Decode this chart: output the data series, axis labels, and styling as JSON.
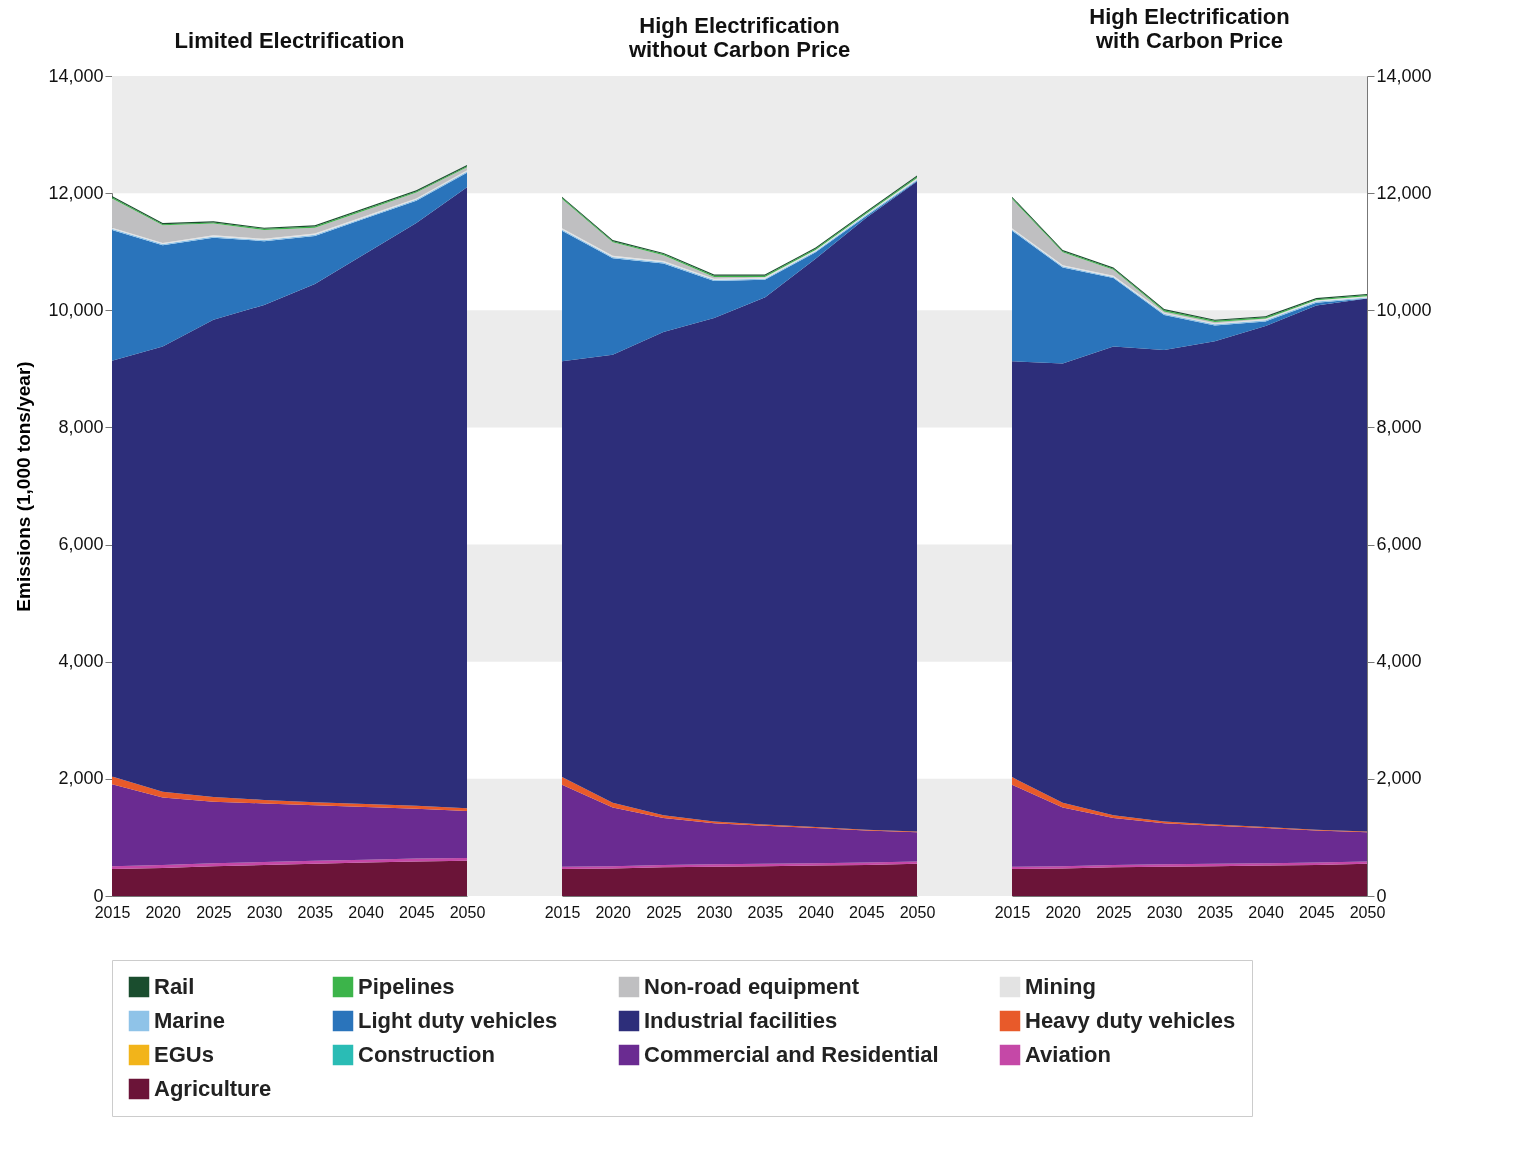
{
  "chart_data": [
    {
      "type": "area",
      "title": "Limited Electrification",
      "ylabel": "Emissions (1,000 tons/year)",
      "stacked": true,
      "legend": "bottom",
      "x": [
        2015,
        2020,
        2025,
        2030,
        2035,
        2040,
        2045,
        2050
      ],
      "xlim": [
        2015,
        2050
      ],
      "xticks": [
        2015,
        2020,
        2025,
        2030,
        2035,
        2040,
        2045,
        2050
      ],
      "ylim": [
        0,
        14000
      ],
      "yticks": [
        0,
        {
          "value": 2000,
          "label": "2,000"
        },
        {
          "value": 4000,
          "label": "4,000"
        },
        {
          "value": 6000,
          "label": "6,000"
        },
        {
          "value": 8000,
          "label": "8,000"
        },
        {
          "value": 10000,
          "label": "10,000"
        },
        {
          "value": 12000,
          "label": "12,000"
        },
        {
          "value": 14000,
          "label": "14,000"
        }
      ],
      "bands": [
        {
          "axis": "y",
          "from": 0,
          "to": 2000,
          "color": "#ececec"
        },
        {
          "axis": "y",
          "from": 4000,
          "to": 6000,
          "color": "#ececec"
        },
        {
          "axis": "y",
          "from": 8000,
          "to": 10000,
          "color": "#ececec"
        },
        {
          "axis": "y",
          "from": 12000,
          "to": 14000,
          "color": "#ececec"
        }
      ],
      "series": [
        {
          "name": "Agriculture",
          "color": "#6b1438",
          "values": [
            460,
            480,
            510,
            530,
            550,
            570,
            590,
            600
          ]
        },
        {
          "name": "Aviation",
          "color": "#c548a7",
          "values": [
            50,
            50,
            50,
            50,
            50,
            50,
            50,
            50
          ]
        },
        {
          "name": "Commercial and Residential",
          "color": "#6a2b91",
          "values": [
            1400,
            1150,
            1050,
            1000,
            950,
            900,
            850,
            800
          ]
        },
        {
          "name": "Construction",
          "color": "#2abcb5",
          "values": [
            null,
            null,
            null,
            null,
            null,
            null,
            null,
            null
          ]
        },
        {
          "name": "EGUs",
          "color": "#f2b41a",
          "values": [
            null,
            null,
            null,
            null,
            null,
            null,
            null,
            null
          ]
        },
        {
          "name": "Heavy duty vehicles",
          "color": "#e85a2a",
          "values": [
            130,
            100,
            80,
            60,
            50,
            50,
            50,
            50
          ]
        },
        {
          "name": "Industrial facilities",
          "color": "#2d2e7a",
          "values": [
            7100,
            7600,
            8150,
            8450,
            8850,
            9400,
            9950,
            10600
          ]
        },
        {
          "name": "Light duty vehicles",
          "color": "#2a74bb",
          "values": [
            2230,
            1730,
            1400,
            1090,
            820,
            600,
            380,
            250
          ]
        },
        {
          "name": "Marine",
          "color": "#8fc3e8",
          "values": [
            20,
            20,
            20,
            20,
            20,
            20,
            20,
            20
          ]
        },
        {
          "name": "Mining",
          "color": "#e3e3e3",
          "values": [
            20,
            20,
            20,
            20,
            20,
            20,
            20,
            20
          ]
        },
        {
          "name": "Non-road equipment",
          "color": "#bfbfc1",
          "values": [
            500,
            300,
            200,
            150,
            100,
            100,
            100,
            50
          ]
        },
        {
          "name": "Pipelines",
          "color": "#3cb44a",
          "values": [
            20,
            20,
            20,
            20,
            20,
            20,
            20,
            20
          ]
        },
        {
          "name": "Rail",
          "color": "#1a4d2e",
          "values": [
            20,
            20,
            20,
            20,
            20,
            20,
            20,
            20
          ]
        }
      ]
    },
    {
      "type": "area",
      "title": "High Electrification\nwithout Carbon Price",
      "stacked": true,
      "tick_labels": "x",
      "x": [
        2015,
        2020,
        2025,
        2030,
        2035,
        2040,
        2045,
        2050
      ],
      "xlim": [
        2015,
        2050
      ],
      "xticks": [
        2015,
        2020,
        2025,
        2030,
        2035,
        2040,
        2045,
        2050
      ],
      "ylim": [
        0,
        14000
      ],
      "bands": [
        {
          "axis": "y",
          "from": 0,
          "to": 2000,
          "color": "#ececec"
        },
        {
          "axis": "y",
          "from": 4000,
          "to": 6000,
          "color": "#ececec"
        },
        {
          "axis": "y",
          "from": 8000,
          "to": 10000,
          "color": "#ececec"
        },
        {
          "axis": "y",
          "from": 12000,
          "to": 14000,
          "color": "#ececec"
        }
      ],
      "series": [
        {
          "name": "Agriculture",
          "color": "#6b1438",
          "values": [
            460,
            470,
            490,
            500,
            510,
            520,
            530,
            550
          ]
        },
        {
          "name": "Aviation",
          "color": "#c548a7",
          "values": [
            40,
            40,
            40,
            40,
            40,
            40,
            40,
            40
          ]
        },
        {
          "name": "Commercial and Residential",
          "color": "#6a2b91",
          "values": [
            1400,
            1000,
            800,
            700,
            650,
            600,
            550,
            500
          ]
        },
        {
          "name": "Heavy duty vehicles",
          "color": "#e85a2a",
          "values": [
            130,
            80,
            50,
            30,
            20,
            20,
            10,
            10
          ]
        },
        {
          "name": "Industrial facilities",
          "color": "#2d2e7a",
          "values": [
            7100,
            7650,
            8250,
            8600,
            9000,
            9700,
            10450,
            11100
          ]
        },
        {
          "name": "Light duty vehicles",
          "color": "#2a74bb",
          "values": [
            2230,
            1650,
            1170,
            630,
            300,
            110,
            30,
            10
          ]
        },
        {
          "name": "Marine",
          "color": "#8fc3e8",
          "values": [
            20,
            20,
            20,
            20,
            20,
            20,
            20,
            20
          ]
        },
        {
          "name": "Mining",
          "color": "#e3e3e3",
          "values": [
            20,
            20,
            20,
            20,
            20,
            20,
            20,
            20
          ]
        },
        {
          "name": "Non-road equipment",
          "color": "#bfbfc1",
          "values": [
            500,
            230,
            100,
            30,
            10,
            0,
            0,
            10
          ]
        },
        {
          "name": "Pipelines",
          "color": "#3cb44a",
          "values": [
            20,
            20,
            20,
            20,
            20,
            20,
            20,
            20
          ]
        },
        {
          "name": "Rail",
          "color": "#1a4d2e",
          "values": [
            20,
            20,
            20,
            20,
            20,
            20,
            20,
            20
          ]
        }
      ]
    },
    {
      "type": "area",
      "title": "High Electrification\nwith Carbon Price",
      "stacked": true,
      "x": [
        2015,
        2020,
        2025,
        2030,
        2035,
        2040,
        2045,
        2050
      ],
      "xlim": [
        2015,
        2050
      ],
      "xticks": [
        2015,
        2020,
        2025,
        2030,
        2035,
        2040,
        2045,
        2050
      ],
      "y2lim": [
        0,
        14000
      ],
      "y2ticks": [
        0,
        {
          "value": 2000,
          "label": "2,000"
        },
        {
          "value": 4000,
          "label": "4,000"
        },
        {
          "value": 6000,
          "label": "6,000"
        },
        {
          "value": 8000,
          "label": "8,000"
        },
        {
          "value": 10000,
          "label": "10,000"
        },
        {
          "value": 12000,
          "label": "12,000"
        },
        {
          "value": 14000,
          "label": "14,000"
        }
      ],
      "bands": [
        {
          "axis": "y2",
          "from": 0,
          "to": 2000,
          "color": "#ececec"
        },
        {
          "axis": "y2",
          "from": 4000,
          "to": 6000,
          "color": "#ececec"
        },
        {
          "axis": "y2",
          "from": 8000,
          "to": 10000,
          "color": "#ececec"
        },
        {
          "axis": "y2",
          "from": 12000,
          "to": 14000,
          "color": "#ececec"
        }
      ],
      "series": [
        {
          "name": "Agriculture",
          "color": "#6b1438",
          "axis": "y2",
          "values": [
            460,
            470,
            490,
            500,
            510,
            520,
            530,
            550
          ]
        },
        {
          "name": "Aviation",
          "color": "#c548a7",
          "axis": "y2",
          "values": [
            40,
            40,
            40,
            40,
            40,
            40,
            40,
            40
          ]
        },
        {
          "name": "Commercial and Residential",
          "color": "#6a2b91",
          "axis": "y2",
          "values": [
            1400,
            1000,
            800,
            700,
            650,
            600,
            550,
            500
          ]
        },
        {
          "name": "Heavy duty vehicles",
          "color": "#e85a2a",
          "axis": "y2",
          "values": [
            130,
            80,
            50,
            30,
            20,
            20,
            10,
            10
          ]
        },
        {
          "name": "Industrial facilities",
          "color": "#2d2e7a",
          "axis": "y2",
          "values": [
            7100,
            7500,
            8000,
            8050,
            8250,
            8550,
            8950,
            9100
          ]
        },
        {
          "name": "Light duty vehicles",
          "color": "#2a74bb",
          "axis": "y2",
          "values": [
            2230,
            1640,
            1170,
            600,
            270,
            80,
            50,
            0
          ]
        },
        {
          "name": "Marine",
          "color": "#8fc3e8",
          "axis": "y2",
          "values": [
            20,
            20,
            20,
            20,
            20,
            20,
            20,
            20
          ]
        },
        {
          "name": "Mining",
          "color": "#e3e3e3",
          "axis": "y2",
          "values": [
            20,
            20,
            20,
            20,
            20,
            20,
            20,
            20
          ]
        },
        {
          "name": "Non-road equipment",
          "color": "#bfbfc1",
          "axis": "y2",
          "values": [
            500,
            220,
            100,
            20,
            20,
            10,
            0,
            0
          ]
        },
        {
          "name": "Pipelines",
          "color": "#3cb44a",
          "axis": "y2",
          "values": [
            20,
            20,
            20,
            20,
            20,
            20,
            20,
            20
          ]
        },
        {
          "name": "Rail",
          "color": "#1a4d2e",
          "axis": "y2",
          "values": [
            20,
            20,
            20,
            20,
            20,
            20,
            20,
            20
          ]
        }
      ]
    }
  ]
}
